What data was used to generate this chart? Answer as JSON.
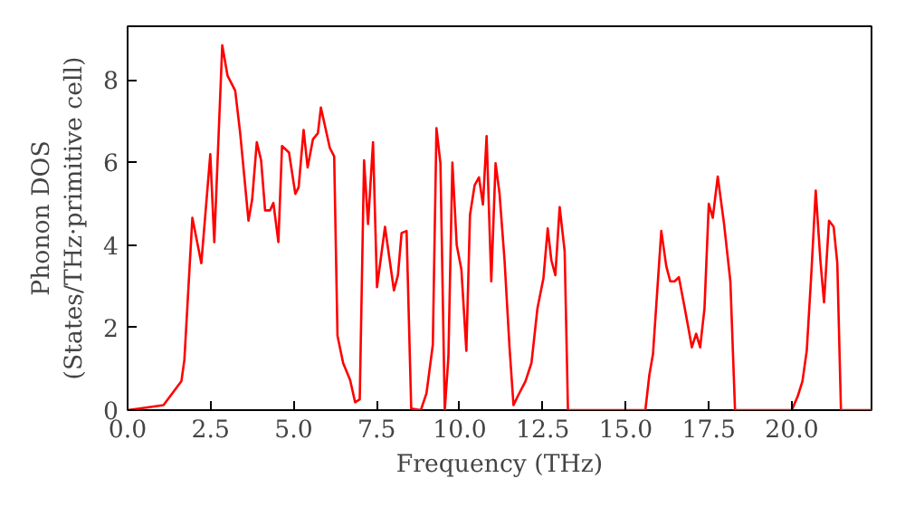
{
  "chart_data": {
    "type": "line",
    "xlabel": "Frequency (THz)",
    "ylabel": "Phonon DOS\n(States/THz·primitive cell)",
    "xlim": [
      0,
      22.4
    ],
    "ylim": [
      0,
      9.3
    ],
    "xticks": [
      {
        "value": 0,
        "label": "0.0"
      },
      {
        "value": 2.5,
        "label": "2.5"
      },
      {
        "value": 5,
        "label": "5.0"
      },
      {
        "value": 7.5,
        "label": "7.5"
      },
      {
        "value": 10,
        "label": "10.0"
      },
      {
        "value": 12.5,
        "label": "12.5"
      },
      {
        "value": 15,
        "label": "15.0"
      },
      {
        "value": 17.5,
        "label": "17.5"
      },
      {
        "value": 20,
        "label": "20.0"
      }
    ],
    "yticks": [
      0,
      2,
      4,
      6,
      8
    ],
    "grid": false,
    "marker": "none",
    "line_style": "solid",
    "series": [
      {
        "color": "#ff0000",
        "x": [
          0,
          1.08,
          1.62,
          1.71,
          1.95,
          2.22,
          2.49,
          2.61,
          2.85,
          3.01,
          3.24,
          3.39,
          3.64,
          3.75,
          3.89,
          4.02,
          4.14,
          4.29,
          4.39,
          4.54,
          4.65,
          4.86,
          5.05,
          5.15,
          5.3,
          5.42,
          5.58,
          5.73,
          5.82,
          6.09,
          6.22,
          6.32,
          6.49,
          6.7,
          6.85,
          6.99,
          7.12,
          7.24,
          7.39,
          7.51,
          7.75,
          8.02,
          8.14,
          8.25,
          8.4,
          8.54,
          8.83,
          9.0,
          9.19,
          9.3,
          9.42,
          9.55,
          9.66,
          9.78,
          9.91,
          10.05,
          10.2,
          10.31,
          10.45,
          10.58,
          10.7,
          10.81,
          10.95,
          11.08,
          11.2,
          11.35,
          11.5,
          11.62,
          11.75,
          11.98,
          12.16,
          12.34,
          12.52,
          12.65,
          12.76,
          12.88,
          13.01,
          13.16,
          13.26,
          15.59,
          15.71,
          15.82,
          16.07,
          16.22,
          16.34,
          16.47,
          16.6,
          16.76,
          16.88,
          16.99,
          17.12,
          17.24,
          17.37,
          17.5,
          17.62,
          17.77,
          17.96,
          18.15,
          18.29,
          20.0,
          20.18,
          20.32,
          20.45,
          20.59,
          20.72,
          20.86,
          20.97,
          21.12,
          21.26,
          21.37,
          21.48,
          22.4
        ],
        "values": [
          0,
          0.12,
          0.7,
          1.22,
          4.66,
          3.56,
          6.2,
          4.07,
          8.84,
          8.1,
          7.74,
          6.71,
          4.59,
          5.1,
          6.49,
          6.05,
          4.84,
          4.84,
          5.02,
          4.07,
          6.4,
          6.24,
          5.24,
          5.4,
          6.79,
          5.88,
          6.56,
          6.71,
          7.33,
          6.35,
          6.15,
          1.8,
          1.14,
          0.73,
          0.19,
          0.26,
          6.05,
          4.51,
          6.49,
          2.98,
          4.44,
          2.9,
          3.27,
          4.29,
          4.34,
          0.04,
          0,
          0.41,
          1.58,
          6.83,
          5.98,
          0,
          1.29,
          6.0,
          4.0,
          3.41,
          1.44,
          4.73,
          5.45,
          5.64,
          4.98,
          6.64,
          3.12,
          5.98,
          5.24,
          3.63,
          1.52,
          0.12,
          0.34,
          0.7,
          1.14,
          2.46,
          3.19,
          4.4,
          3.63,
          3.27,
          4.92,
          3.85,
          0,
          0,
          0.85,
          1.36,
          4.34,
          3.49,
          3.12,
          3.12,
          3.22,
          2.54,
          2.02,
          1.52,
          1.85,
          1.52,
          2.46,
          5.0,
          4.66,
          5.66,
          4.51,
          3.12,
          0,
          0,
          0.34,
          0.7,
          1.44,
          3.34,
          5.32,
          3.63,
          2.61,
          4.59,
          4.44,
          3.56,
          0,
          0
        ]
      }
    ]
  }
}
